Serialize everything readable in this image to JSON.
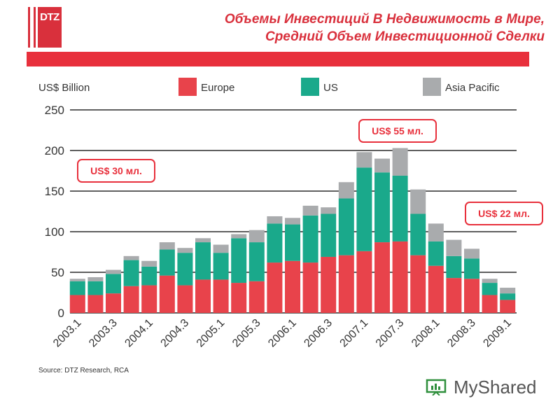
{
  "logo": {
    "text": "DTZ"
  },
  "title": {
    "line1": "Объемы Инвестиций В Недвижимость в Мире,",
    "line2": "Средний Объем Инвестиционной Сделки"
  },
  "colors": {
    "europe": "#e8434b",
    "us": "#1aa98b",
    "asia": "#a9abad",
    "accent": "#e8303c"
  },
  "chart_data": {
    "type": "bar",
    "stacked": true,
    "ylabel": "US$ Billion",
    "ylim": [
      0,
      250
    ],
    "yticks": [
      0,
      50,
      100,
      150,
      200,
      250
    ],
    "grid": true,
    "legend_position": "top",
    "categories": [
      "2003.1",
      "2003.2",
      "2003.3",
      "2003.4",
      "2004.1",
      "2004.2",
      "2004.3",
      "2004.4",
      "2005.1",
      "2005.2",
      "2005.3",
      "2005.4",
      "2006.1",
      "2006.2",
      "2006.3",
      "2006.4",
      "2007.1",
      "2007.2",
      "2007.3",
      "2007.4",
      "2008.1",
      "2008.2",
      "2008.3",
      "2008.4",
      "2009.1"
    ],
    "xtick_labels": [
      "2003.1",
      "2003.3",
      "2004.1",
      "2004.3",
      "2005.1",
      "2005.3",
      "2006.1",
      "2006.3",
      "2007.1",
      "2007.3",
      "2008.1",
      "2008.3",
      "2009.1"
    ],
    "series": [
      {
        "name": "Europe",
        "color": "#e8434b",
        "values": [
          22,
          22,
          24,
          33,
          34,
          46,
          34,
          41,
          41,
          37,
          39,
          62,
          64,
          62,
          69,
          71,
          76,
          87,
          88,
          71,
          58,
          43,
          42,
          22,
          16
        ]
      },
      {
        "name": "US",
        "color": "#1aa98b",
        "values": [
          17,
          17,
          24,
          32,
          23,
          32,
          40,
          46,
          33,
          55,
          48,
          48,
          45,
          58,
          53,
          70,
          103,
          86,
          81,
          51,
          30,
          27,
          25,
          15,
          8
        ]
      },
      {
        "name": "Asia Pacific",
        "color": "#a9abad",
        "values": [
          3,
          5,
          5,
          5,
          7,
          9,
          6,
          5,
          10,
          5,
          15,
          9,
          8,
          12,
          8,
          20,
          19,
          17,
          34,
          30,
          22,
          20,
          12,
          5,
          7
        ]
      }
    ],
    "annotations": [
      "US$ 30 мл.",
      "US$ 55 мл.",
      "US$ 22 мл."
    ],
    "source": "Source: DTZ Research, RCA"
  },
  "brand": {
    "text": "MyShared"
  }
}
